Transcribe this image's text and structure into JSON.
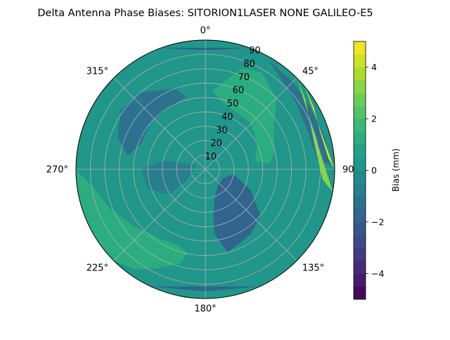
{
  "chart_data": {
    "type": "heatmap",
    "projection": "polar",
    "title": "Delta Antenna Phase Biases: SITORION1LASER  NONE GALILEO-E5",
    "theta_zero": "N",
    "theta_direction": "clockwise",
    "angle_ticks": [
      "0°",
      "45°",
      "90",
      "135°",
      "180°",
      "225°",
      "270°",
      "315°"
    ],
    "radial_ticks": [
      10,
      20,
      30,
      40,
      50,
      60,
      70,
      80,
      90
    ],
    "rlim": [
      0,
      90
    ],
    "grid": true,
    "colorbar": {
      "label": "Bias (mm)",
      "range": [
        -5,
        5
      ],
      "ticks": [
        -4,
        -2,
        0,
        2,
        4
      ],
      "levels": [
        -5,
        -4.5,
        -4,
        -3.5,
        -3,
        -2.5,
        -2,
        -1.5,
        -1,
        -0.5,
        0,
        0.5,
        1,
        1.5,
        2,
        2.5,
        3,
        3.5,
        4,
        4.5,
        5
      ],
      "colormap": "viridis"
    },
    "regions": [
      {
        "label": "background",
        "value": 0.3
      },
      {
        "label": "NNE lobe",
        "value": 1.3
      },
      {
        "label": "NNW band",
        "value": -1.2
      },
      {
        "label": "NE dark band",
        "value": -1.3
      },
      {
        "label": "ENE rim",
        "value": 3.2
      },
      {
        "label": "ENE rim peak",
        "value": 4.2
      },
      {
        "label": "SE low",
        "value": -1.7
      },
      {
        "label": "WSW band",
        "value": 1.3
      },
      {
        "label": "W low",
        "value": -0.9
      },
      {
        "label": "N rim low",
        "value": -2.3
      },
      {
        "label": "S rim low",
        "value": -1.6
      }
    ]
  }
}
